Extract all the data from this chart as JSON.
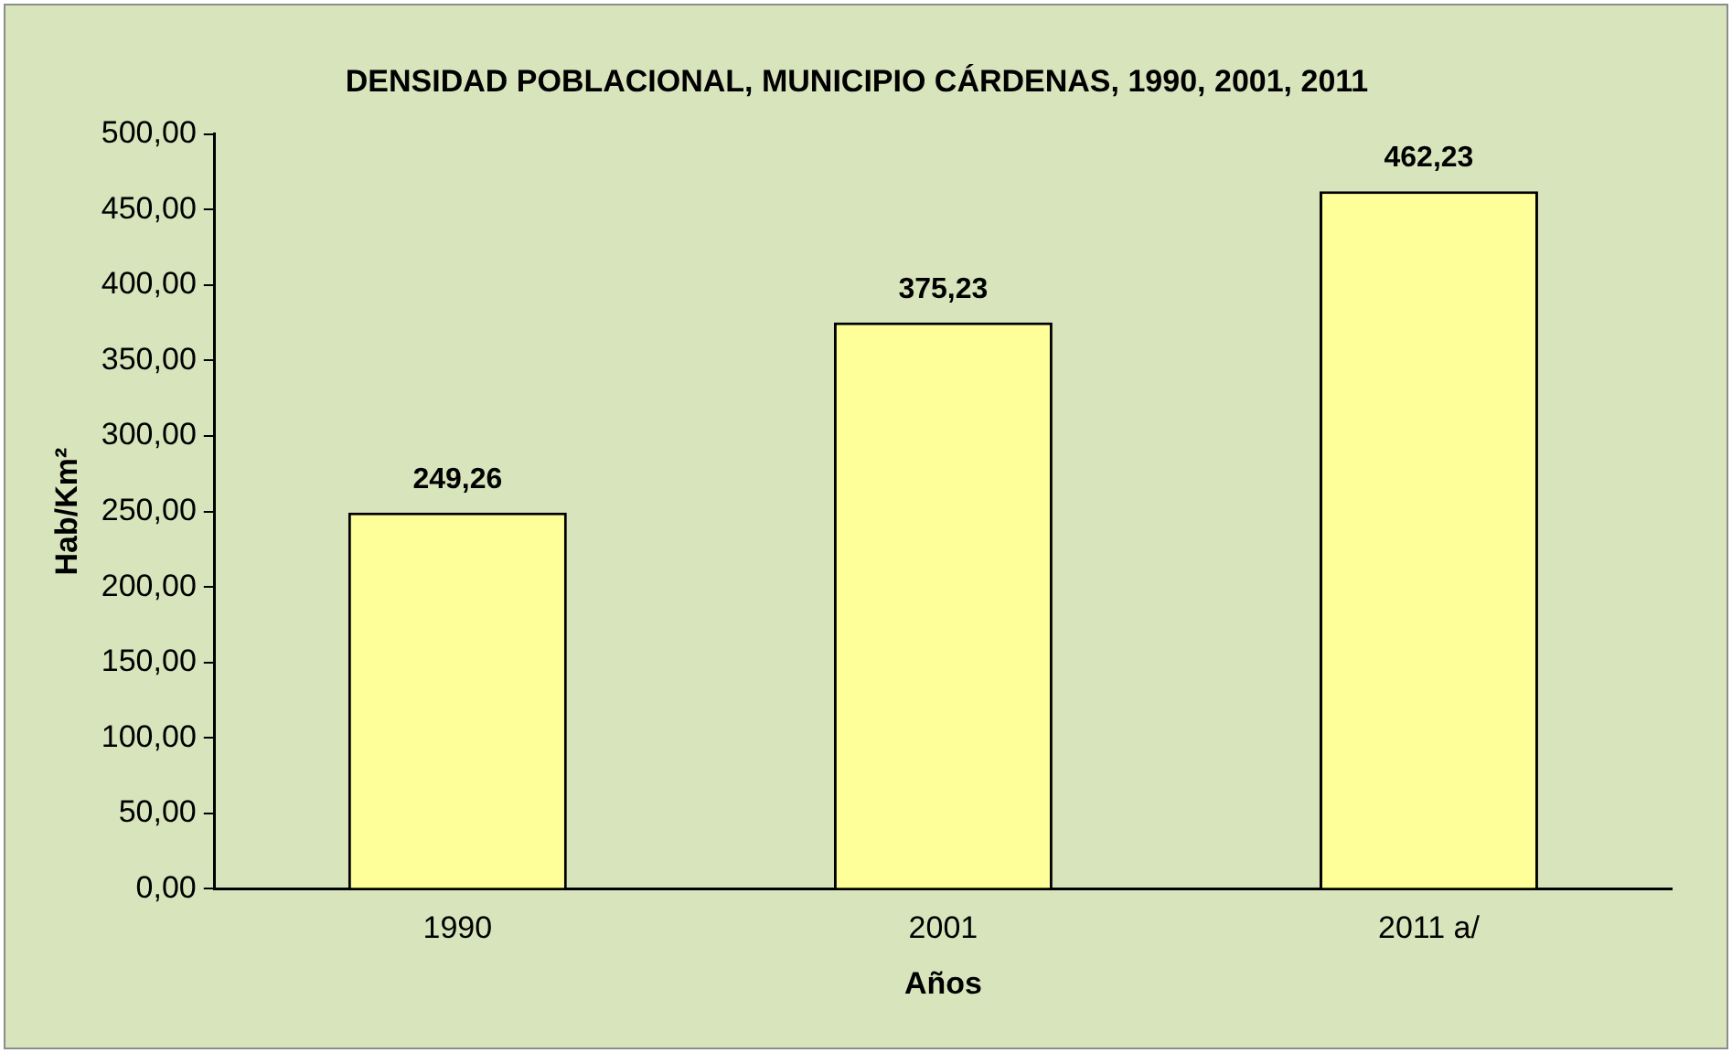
{
  "chart_data": {
    "type": "bar",
    "title": "DENSIDAD POBLACIONAL, MUNICIPIO CÁRDENAS, 1990, 2001, 2011",
    "xlabel": "Años",
    "ylabel": "Hab/Km²",
    "categories": [
      "1990",
      "2001",
      "2011 a/"
    ],
    "values": [
      249.26,
      375.23,
      462.23
    ],
    "value_labels": [
      "249,26",
      "375,23",
      "462,23"
    ],
    "color": "#ffff99",
    "ylim": [
      0,
      500
    ],
    "yticks": [
      {
        "value": 0,
        "label": "0,00"
      },
      {
        "value": 50,
        "label": "50,00"
      },
      {
        "value": 100,
        "label": "100,00"
      },
      {
        "value": 150,
        "label": "150,00"
      },
      {
        "value": 200,
        "label": "200,00"
      },
      {
        "value": 250,
        "label": "250,00"
      },
      {
        "value": 300,
        "label": "300,00"
      },
      {
        "value": 350,
        "label": "350,00"
      },
      {
        "value": 400,
        "label": "400,00"
      },
      {
        "value": 450,
        "label": "450,00"
      },
      {
        "value": 500,
        "label": "500,00"
      }
    ],
    "grid": false,
    "legend": false
  }
}
